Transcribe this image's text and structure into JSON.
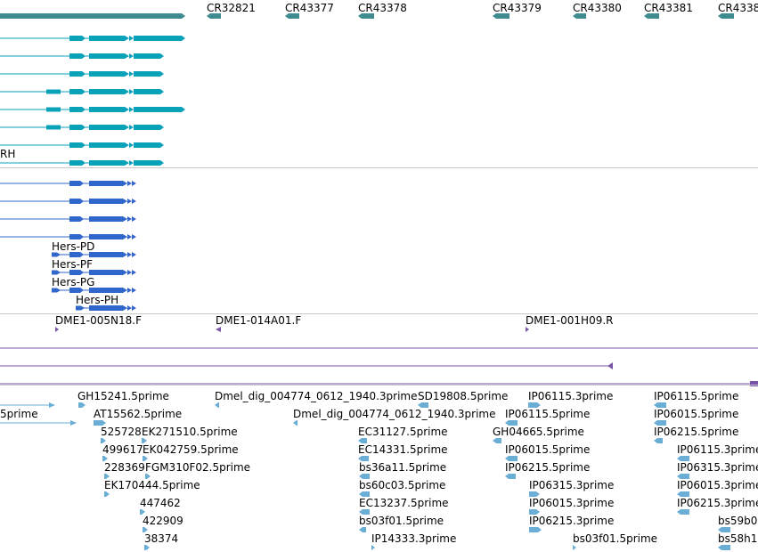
{
  "colors": {
    "teal_dark": "#3e8c8f",
    "teal_bright": "#0aa2b8",
    "blue_protein": "#3166cc",
    "purple_clone": "#7a55a8",
    "est_light": "#6aaed6",
    "divider": "#c8c8c8"
  },
  "cr_labels": [
    {
      "text": "CR32821"
    },
    {
      "text": "CR43377"
    },
    {
      "text": "CR43378"
    },
    {
      "text": "CR43379"
    },
    {
      "text": "CR43380"
    },
    {
      "text": "CR43381"
    },
    {
      "text": "CR4338"
    }
  ],
  "transcript_partial_label": "RH",
  "protein_labels": [
    "Hers-PD",
    "Hers-PF",
    "Hers-PG",
    "Hers-PH"
  ],
  "clone_labels": [
    "DME1-005N18.F",
    "DME1-014A01.F",
    "DME1-001H09.R"
  ],
  "est_labels": [
    "GH15241.5prime",
    "Dmel_dig_004774_0612_1940.3prime",
    "SD19808.5prime",
    "IP06115.3prime",
    "IP06115.5prime",
    "5prime",
    "AT15562.5prime",
    "Dmel_dig_004774_0612_1940.3prime",
    "IP06115.5prime",
    "IP06015.5prime",
    "525728",
    "EK271510.5prime",
    "EC31127.5prime",
    "GH04665.5prime",
    "IP06215.5prime",
    "499617",
    "EK042759.5prime",
    "EC14331.5prime",
    "IP06015.5prime",
    "IP06115.3prime",
    "228369",
    "FGM310F02.5prime",
    "bs36a11.5prime",
    "IP06215.5prime",
    "IP06315.3prime",
    "EK170444.5prime",
    "bs60c03.5prime",
    "IP06315.3prime",
    "IP06015.3prime",
    "447462",
    "EC13237.5prime",
    "IP06015.3prime",
    "IP06215.3prime",
    "422909",
    "bs03f01.5prime",
    "IP06215.3prime",
    "bs59b0",
    "38374",
    "IP14333.3prime",
    "bs03f01.5prime",
    "bs58h1"
  ]
}
